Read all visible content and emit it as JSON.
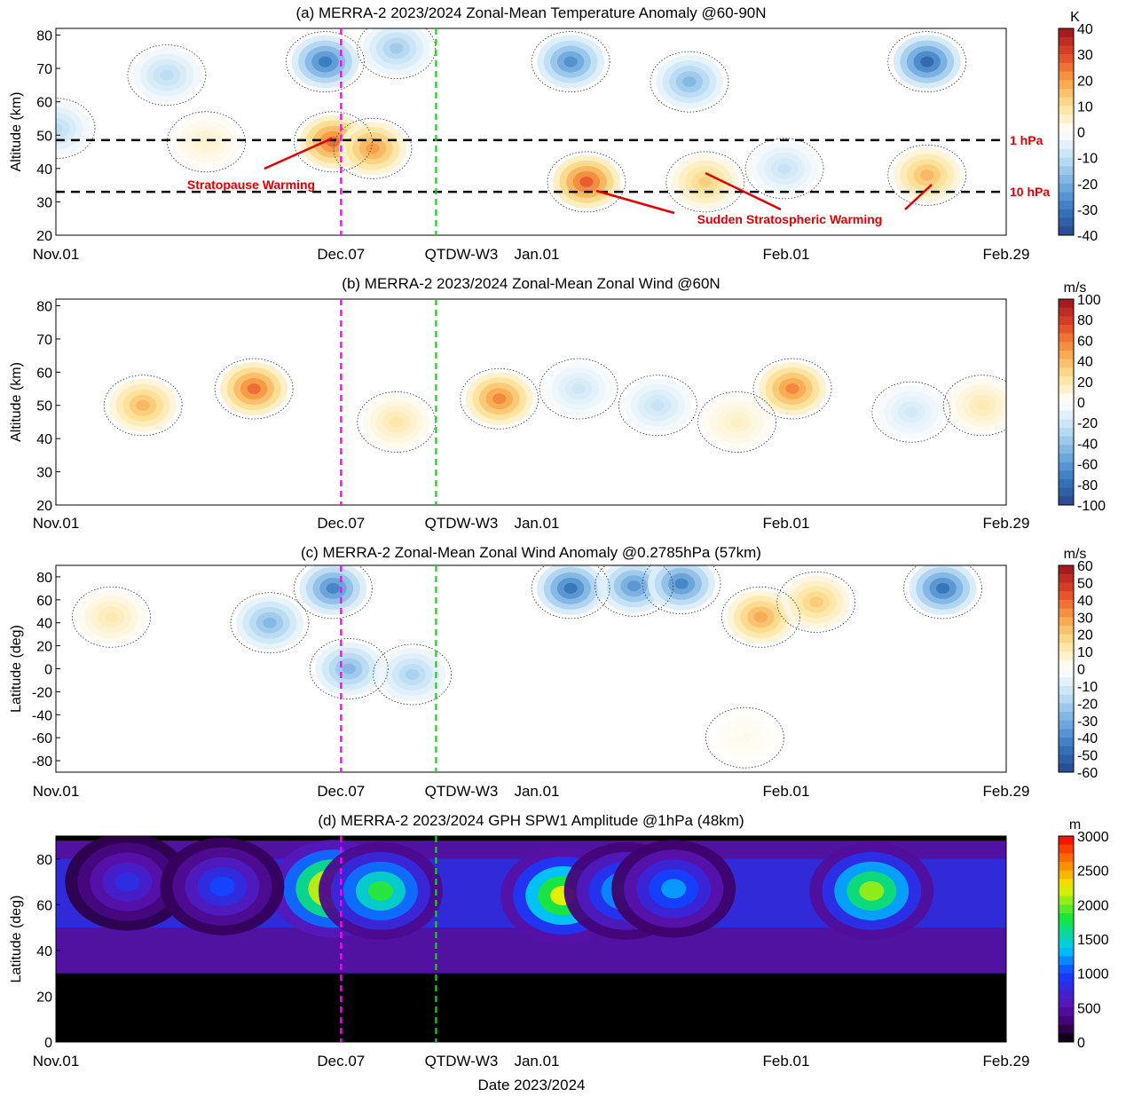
{
  "figure": {
    "xlabel": "Date 2023/2024",
    "date_range": [
      "2023-11-01",
      "2024-02-29"
    ],
    "date_tick_labels": [
      "Nov.01",
      "Dec.07",
      "QTDW-W3",
      "Jan.01",
      "Feb.01",
      "Feb.29"
    ],
    "magenta_line_date": "2023-12-07",
    "green_line_date": "2023-12-19",
    "line_colors": {
      "magenta": "#ff00ff",
      "green": "#22cc22"
    }
  },
  "chart_data": [
    {
      "type": "heatmap",
      "title": "(a) MERRA-2 2023/2024 Zonal-Mean Temperature Anomaly @60-90N",
      "ylabel": "Altitude (km)",
      "yticks": [
        20,
        30,
        40,
        50,
        60,
        70,
        80
      ],
      "ylim": [
        20,
        82
      ],
      "colorbar_unit": "K",
      "colorbar_ticks": [
        40,
        30,
        20,
        10,
        0,
        -10,
        -20,
        -30,
        -40
      ],
      "colorbar_range": [
        -40,
        40
      ],
      "colormap": "diverging",
      "reference_lines": [
        {
          "label": "1 hPa",
          "altitude_km": 48.5
        },
        {
          "label": "10 hPa",
          "altitude_km": 33
        }
      ],
      "annotations": [
        "Stratopause Warming",
        "Sudden Stratospheric Warming"
      ],
      "features": [
        {
          "date": "2023-11-15",
          "altitude_km": 68,
          "value": -12
        },
        {
          "date": "2023-12-05",
          "altitude_km": 72,
          "value": -32
        },
        {
          "date": "2023-12-14",
          "altitude_km": 76,
          "value": -16
        },
        {
          "date": "2023-12-06",
          "altitude_km": 48,
          "value": 28
        },
        {
          "date": "2023-12-11",
          "altitude_km": 46,
          "value": 22
        },
        {
          "date": "2023-11-20",
          "altitude_km": 48,
          "value": 5
        },
        {
          "date": "2024-01-05",
          "altitude_km": 72,
          "value": -28
        },
        {
          "date": "2024-01-20",
          "altitude_km": 66,
          "value": -20
        },
        {
          "date": "2024-01-07",
          "altitude_km": 36,
          "value": 30
        },
        {
          "date": "2024-01-22",
          "altitude_km": 36,
          "value": 14
        },
        {
          "date": "2024-02-01",
          "altitude_km": 40,
          "value": -10
        },
        {
          "date": "2024-02-19",
          "altitude_km": 72,
          "value": -36
        },
        {
          "date": "2024-02-19",
          "altitude_km": 38,
          "value": 18
        },
        {
          "date": "2023-11-01",
          "altitude_km": 52,
          "value": -12
        }
      ]
    },
    {
      "type": "heatmap",
      "title": "(b) MERRA-2 2023/2024 Zonal-Mean Zonal Wind @60N",
      "ylabel": "Altitude (km)",
      "yticks": [
        20,
        30,
        40,
        50,
        60,
        70,
        80
      ],
      "ylim": [
        20,
        82
      ],
      "colorbar_unit": "m/s",
      "colorbar_ticks": [
        100,
        80,
        60,
        40,
        20,
        0,
        -20,
        -40,
        -60,
        -80,
        -100
      ],
      "colorbar_range": [
        -100,
        100
      ],
      "colormap": "diverging",
      "features": [
        {
          "date": "2023-11-12",
          "altitude_km": 50,
          "value": 45
        },
        {
          "date": "2023-11-26",
          "altitude_km": 55,
          "value": 70
        },
        {
          "date": "2023-12-14",
          "altitude_km": 45,
          "value": 22
        },
        {
          "date": "2023-12-27",
          "altitude_km": 52,
          "value": 62
        },
        {
          "date": "2024-01-06",
          "altitude_km": 55,
          "value": -22
        },
        {
          "date": "2024-01-16",
          "altitude_km": 50,
          "value": -25
        },
        {
          "date": "2024-01-26",
          "altitude_km": 45,
          "value": 15
        },
        {
          "date": "2024-02-02",
          "altitude_km": 55,
          "value": 62
        },
        {
          "date": "2024-02-17",
          "altitude_km": 48,
          "value": -20
        },
        {
          "date": "2024-02-26",
          "altitude_km": 50,
          "value": 20
        }
      ]
    },
    {
      "type": "heatmap",
      "title": "(c) MERRA-2 Zonal-Mean Zonal Wind Anomaly @0.2785hPa (57km)",
      "ylabel": "Latitude (deg)",
      "yticks": [
        -80,
        -60,
        -40,
        -20,
        0,
        20,
        40,
        60,
        80
      ],
      "ylim": [
        -90,
        90
      ],
      "colorbar_unit": "m/s",
      "colorbar_ticks": [
        60,
        50,
        40,
        30,
        20,
        10,
        0,
        -10,
        -20,
        -30,
        -40,
        -50,
        -60
      ],
      "colorbar_range": [
        -60,
        60
      ],
      "colormap": "diverging",
      "features": [
        {
          "date": "2023-12-06",
          "latitude": 70,
          "value": -45
        },
        {
          "date": "2023-11-28",
          "latitude": 40,
          "value": -30
        },
        {
          "date": "2023-12-08",
          "latitude": 0,
          "value": -30
        },
        {
          "date": "2023-12-16",
          "latitude": -5,
          "value": -22
        },
        {
          "date": "2024-01-05",
          "latitude": 70,
          "value": -50
        },
        {
          "date": "2024-01-13",
          "latitude": 72,
          "value": -40
        },
        {
          "date": "2024-01-19",
          "latitude": 74,
          "value": -45
        },
        {
          "date": "2024-01-29",
          "latitude": 45,
          "value": 30
        },
        {
          "date": "2024-02-05",
          "latitude": 58,
          "value": 22
        },
        {
          "date": "2024-02-21",
          "latitude": 70,
          "value": -50
        },
        {
          "date": "2023-11-08",
          "latitude": 45,
          "value": 12
        },
        {
          "date": "2024-01-27",
          "latitude": -60,
          "value": 3
        }
      ]
    },
    {
      "type": "heatmap",
      "title": "(d) MERRA-2 2023/2024 GPH SPW1 Amplitude @1hPa (48km)",
      "ylabel": "Latitude (deg)",
      "yticks": [
        0,
        20,
        40,
        60,
        80
      ],
      "ylim": [
        0,
        90
      ],
      "colorbar_unit": "m",
      "colorbar_ticks": [
        3000,
        2500,
        2000,
        1500,
        1000,
        500,
        0
      ],
      "colorbar_range": [
        0,
        3000
      ],
      "colormap": "jet",
      "features": [
        {
          "date": "2023-12-06",
          "latitude": 67,
          "value": 2900
        },
        {
          "date": "2023-12-12",
          "latitude": 66,
          "value": 2000
        },
        {
          "date": "2024-01-04",
          "latitude": 64,
          "value": 2450
        },
        {
          "date": "2024-01-12",
          "latitude": 66,
          "value": 1600
        },
        {
          "date": "2024-01-18",
          "latitude": 67,
          "value": 1350
        },
        {
          "date": "2024-02-12",
          "latitude": 66,
          "value": 2250
        },
        {
          "date": "2023-11-10",
          "latitude": 70,
          "value": 900
        },
        {
          "date": "2023-11-22",
          "latitude": 68,
          "value": 1100
        }
      ]
    }
  ]
}
